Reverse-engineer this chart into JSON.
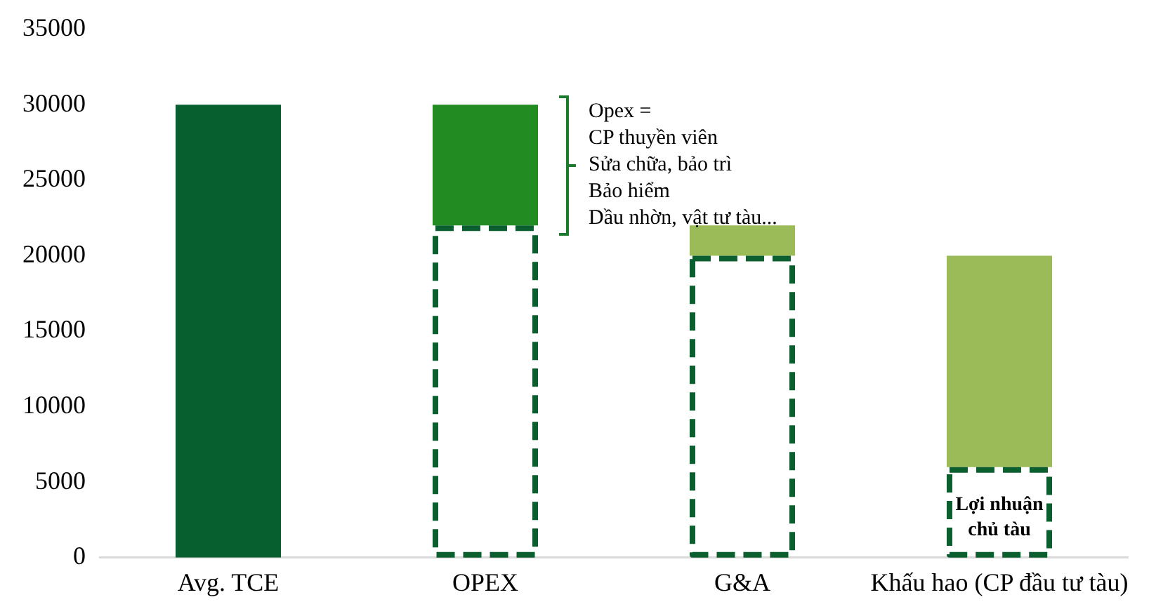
{
  "chart_data": {
    "type": "bar",
    "stacked": true,
    "categories": [
      "Avg. TCE",
      "OPEX",
      "G&A",
      "Khấu hao (CP đầu tư tàu)"
    ],
    "series": [
      {
        "color": "#0b5e2e",
        "line_style": "dashed",
        "values": [
          null,
          22000,
          20000,
          6000
        ]
      },
      {
        "colors": [
          "#075e2f",
          "#228b22",
          "#9bbb59",
          "#9bbb59"
        ],
        "values": [
          30000,
          8000,
          2000,
          14000
        ]
      }
    ],
    "ylim": [
      0,
      35000
    ],
    "yticks": [
      0,
      5000,
      10000,
      15000,
      20000,
      25000,
      30000,
      35000
    ],
    "grid": false,
    "legend": false,
    "annotations": [
      "Opex =\nCP thuyền viên\nSửa chữa, bảo trì\nBảo hiểm\nDầu nhờn, vật tư tàu...",
      "Lợi nhuận chủ tàu"
    ]
  }
}
